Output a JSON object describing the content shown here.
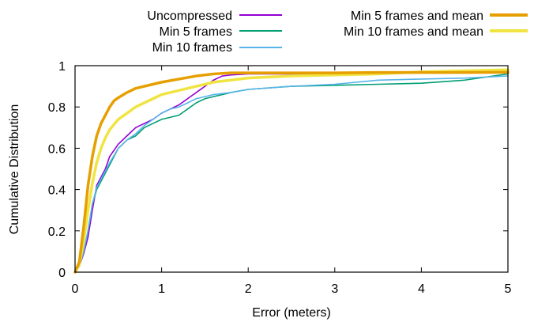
{
  "chart_data": {
    "type": "line",
    "title": "",
    "xlabel": "Error (meters)",
    "ylabel": "Cumulative Distribution",
    "xlim": [
      0,
      5
    ],
    "ylim": [
      0,
      1
    ],
    "x_ticks": [
      "0",
      "1",
      "2",
      "3",
      "4",
      "5"
    ],
    "y_ticks": [
      "0",
      "0.2",
      "0.4",
      "0.6",
      "0.8",
      "1"
    ],
    "grid": false,
    "legend_position": "top, outside plot area (two columns)",
    "series": [
      {
        "name": "Uncompressed",
        "color": "#9400d3",
        "style": "thin",
        "points": [
          [
            0.0,
            0.0
          ],
          [
            0.05,
            0.03
          ],
          [
            0.1,
            0.09
          ],
          [
            0.15,
            0.17
          ],
          [
            0.2,
            0.3
          ],
          [
            0.25,
            0.42
          ],
          [
            0.3,
            0.46
          ],
          [
            0.35,
            0.5
          ],
          [
            0.4,
            0.56
          ],
          [
            0.5,
            0.62
          ],
          [
            0.6,
            0.66
          ],
          [
            0.7,
            0.7
          ],
          [
            0.8,
            0.72
          ],
          [
            0.9,
            0.74
          ],
          [
            1.0,
            0.77
          ],
          [
            1.1,
            0.79
          ],
          [
            1.2,
            0.81
          ],
          [
            1.3,
            0.84
          ],
          [
            1.4,
            0.87
          ],
          [
            1.5,
            0.9
          ],
          [
            1.6,
            0.93
          ],
          [
            1.7,
            0.95
          ],
          [
            1.8,
            0.955
          ],
          [
            2.0,
            0.96
          ],
          [
            2.5,
            0.96
          ],
          [
            3.0,
            0.96
          ],
          [
            3.5,
            0.965
          ],
          [
            4.0,
            0.965
          ],
          [
            4.5,
            0.965
          ],
          [
            5.0,
            0.97
          ]
        ]
      },
      {
        "name": "Min 5 frames",
        "color": "#009e73",
        "style": "thin",
        "points": [
          [
            0.0,
            0.0
          ],
          [
            0.05,
            0.03
          ],
          [
            0.1,
            0.1
          ],
          [
            0.15,
            0.2
          ],
          [
            0.2,
            0.33
          ],
          [
            0.25,
            0.4
          ],
          [
            0.3,
            0.44
          ],
          [
            0.35,
            0.48
          ],
          [
            0.4,
            0.52
          ],
          [
            0.5,
            0.6
          ],
          [
            0.6,
            0.64
          ],
          [
            0.7,
            0.66
          ],
          [
            0.8,
            0.7
          ],
          [
            0.9,
            0.72
          ],
          [
            1.0,
            0.74
          ],
          [
            1.1,
            0.75
          ],
          [
            1.2,
            0.76
          ],
          [
            1.3,
            0.79
          ],
          [
            1.4,
            0.82
          ],
          [
            1.5,
            0.84
          ],
          [
            1.6,
            0.85
          ],
          [
            1.7,
            0.86
          ],
          [
            1.8,
            0.87
          ],
          [
            2.0,
            0.885
          ],
          [
            2.5,
            0.9
          ],
          [
            3.0,
            0.905
          ],
          [
            3.5,
            0.91
          ],
          [
            4.0,
            0.915
          ],
          [
            4.5,
            0.93
          ],
          [
            5.0,
            0.96
          ]
        ]
      },
      {
        "name": "Min 10 frames",
        "color": "#56b4e9",
        "style": "thin",
        "points": [
          [
            0.0,
            0.0
          ],
          [
            0.05,
            0.03
          ],
          [
            0.1,
            0.1
          ],
          [
            0.15,
            0.2
          ],
          [
            0.2,
            0.33
          ],
          [
            0.25,
            0.41
          ],
          [
            0.3,
            0.45
          ],
          [
            0.35,
            0.49
          ],
          [
            0.4,
            0.53
          ],
          [
            0.5,
            0.6
          ],
          [
            0.6,
            0.64
          ],
          [
            0.7,
            0.67
          ],
          [
            0.8,
            0.71
          ],
          [
            0.9,
            0.74
          ],
          [
            1.0,
            0.77
          ],
          [
            1.1,
            0.79
          ],
          [
            1.2,
            0.8
          ],
          [
            1.3,
            0.82
          ],
          [
            1.4,
            0.84
          ],
          [
            1.5,
            0.85
          ],
          [
            1.6,
            0.86
          ],
          [
            1.8,
            0.87
          ],
          [
            2.0,
            0.885
          ],
          [
            2.5,
            0.9
          ],
          [
            3.0,
            0.91
          ],
          [
            3.5,
            0.93
          ],
          [
            4.0,
            0.935
          ],
          [
            4.5,
            0.94
          ],
          [
            5.0,
            0.95
          ]
        ]
      },
      {
        "name": "Min 5 frames and mean",
        "color": "#e69f00",
        "style": "thick",
        "points": [
          [
            0.0,
            0.0
          ],
          [
            0.05,
            0.05
          ],
          [
            0.1,
            0.22
          ],
          [
            0.15,
            0.42
          ],
          [
            0.2,
            0.56
          ],
          [
            0.25,
            0.66
          ],
          [
            0.3,
            0.72
          ],
          [
            0.35,
            0.76
          ],
          [
            0.4,
            0.8
          ],
          [
            0.45,
            0.83
          ],
          [
            0.5,
            0.845
          ],
          [
            0.6,
            0.87
          ],
          [
            0.7,
            0.89
          ],
          [
            0.8,
            0.9
          ],
          [
            0.9,
            0.91
          ],
          [
            1.0,
            0.92
          ],
          [
            1.2,
            0.935
          ],
          [
            1.4,
            0.95
          ],
          [
            1.6,
            0.96
          ],
          [
            1.8,
            0.965
          ],
          [
            2.0,
            0.965
          ],
          [
            2.5,
            0.965
          ],
          [
            3.0,
            0.965
          ],
          [
            3.5,
            0.967
          ],
          [
            4.0,
            0.967
          ],
          [
            4.5,
            0.967
          ],
          [
            5.0,
            0.968
          ]
        ]
      },
      {
        "name": "Min 10 frames and mean",
        "color": "#f0e442",
        "style": "thick",
        "points": [
          [
            0.0,
            0.0
          ],
          [
            0.05,
            0.04
          ],
          [
            0.1,
            0.15
          ],
          [
            0.15,
            0.3
          ],
          [
            0.2,
            0.43
          ],
          [
            0.25,
            0.53
          ],
          [
            0.3,
            0.6
          ],
          [
            0.35,
            0.65
          ],
          [
            0.4,
            0.69
          ],
          [
            0.5,
            0.74
          ],
          [
            0.6,
            0.77
          ],
          [
            0.7,
            0.8
          ],
          [
            0.8,
            0.82
          ],
          [
            0.9,
            0.84
          ],
          [
            1.0,
            0.86
          ],
          [
            1.1,
            0.87
          ],
          [
            1.2,
            0.88
          ],
          [
            1.3,
            0.89
          ],
          [
            1.4,
            0.9
          ],
          [
            1.5,
            0.91
          ],
          [
            1.6,
            0.92
          ],
          [
            1.8,
            0.93
          ],
          [
            2.0,
            0.94
          ],
          [
            2.5,
            0.95
          ],
          [
            3.0,
            0.955
          ],
          [
            3.5,
            0.96
          ],
          [
            4.0,
            0.97
          ],
          [
            4.5,
            0.975
          ],
          [
            5.0,
            0.98
          ]
        ]
      }
    ]
  }
}
